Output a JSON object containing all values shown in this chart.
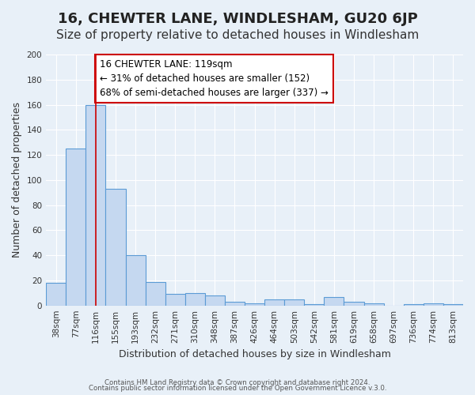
{
  "title": "16, CHEWTER LANE, WINDLESHAM, GU20 6JP",
  "subtitle": "Size of property relative to detached houses in Windlesham",
  "xlabel": "Distribution of detached houses by size in Windlesham",
  "ylabel": "Number of detached properties",
  "footer_lines": [
    "Contains HM Land Registry data © Crown copyright and database right 2024.",
    "Contains public sector information licensed under the Open Government Licence v.3.0."
  ],
  "bar_labels": [
    "38sqm",
    "77sqm",
    "116sqm",
    "155sqm",
    "193sqm",
    "232sqm",
    "271sqm",
    "310sqm",
    "348sqm",
    "387sqm",
    "426sqm",
    "464sqm",
    "503sqm",
    "542sqm",
    "581sqm",
    "619sqm",
    "658sqm",
    "697sqm",
    "736sqm",
    "774sqm",
    "813sqm"
  ],
  "bar_values": [
    18,
    125,
    160,
    93,
    40,
    19,
    9,
    10,
    8,
    3,
    2,
    5,
    5,
    1,
    7,
    3,
    2,
    0,
    1,
    2,
    1
  ],
  "bar_color": "#c5d8f0",
  "bar_edge_color": "#5b9bd5",
  "annotation_text": "16 CHEWTER LANE: 119sqm\n← 31% of detached houses are smaller (152)\n68% of semi-detached houses are larger (337) →",
  "annotation_box_edge_color": "#cc0000",
  "vline_x": 2,
  "vline_color": "#cc0000",
  "ylim": [
    0,
    200
  ],
  "yticks": [
    0,
    20,
    40,
    60,
    80,
    100,
    120,
    140,
    160,
    180,
    200
  ],
  "bg_color": "#e8f0f8",
  "plot_bg_color": "#e8f0f8",
  "grid_color": "#ffffff",
  "title_fontsize": 13,
  "subtitle_fontsize": 11,
  "annotation_fontsize": 8.5,
  "axis_label_fontsize": 9,
  "tick_fontsize": 7.5
}
